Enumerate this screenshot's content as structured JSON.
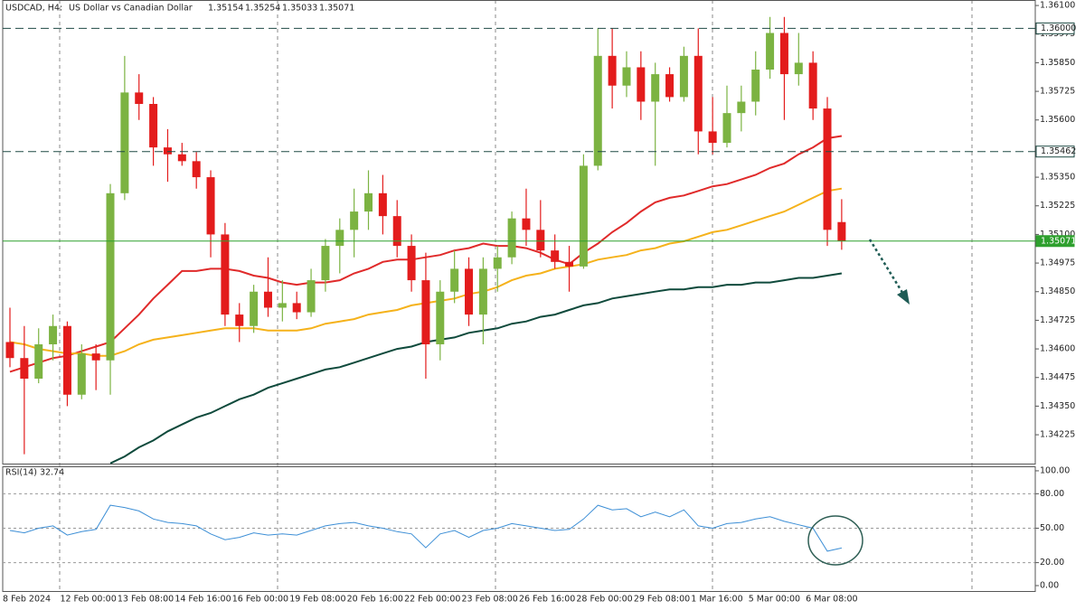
{
  "chart_data": [
    {
      "type": "candlestick",
      "symbol": "USDCAD, H4:",
      "title": "US Dollar vs Canadian Dollar",
      "categories": [
        "8 Feb 2024",
        null,
        null,
        null,
        "12 Feb 00:00",
        null,
        null,
        null,
        "13 Feb 08:00",
        null,
        null,
        null,
        "14 Feb 16:00",
        null,
        null,
        null,
        "16 Feb 00:00",
        null,
        null,
        null,
        "19 Feb 08:00",
        null,
        null,
        null,
        "20 Feb 16:00",
        null,
        null,
        null,
        "22 Feb 00:00",
        null,
        null,
        null,
        "23 Feb 08:00",
        null,
        null,
        null,
        "26 Feb 16:00",
        null,
        null,
        null,
        "28 Feb 00:00",
        null,
        null,
        null,
        "29 Feb 08:00",
        null,
        null,
        null,
        "1 Mar 16:00",
        null,
        null,
        null,
        "5 Mar 00:00",
        null,
        null,
        null,
        "6 Mar 08:00",
        null,
        null
      ],
      "open": [
        1.3463,
        1.3456,
        1.3447,
        1.3462,
        1.347,
        1.344,
        1.3458,
        1.3455,
        1.3528,
        1.3572,
        1.3567,
        1.3548,
        1.3545,
        1.3542,
        1.3535,
        1.351,
        1.3475,
        1.347,
        1.3485,
        1.3478,
        1.348,
        1.3476,
        1.349,
        1.3505,
        1.3512,
        1.352,
        1.3528,
        1.3518,
        1.3505,
        1.349,
        1.3462,
        1.3485,
        1.3495,
        1.3475,
        1.3495,
        1.35,
        1.3517,
        1.3512,
        1.3503,
        1.3498,
        1.3496,
        1.354,
        1.3588,
        1.3575,
        1.3583,
        1.3568,
        1.358,
        1.357,
        1.3588,
        1.3555,
        1.355,
        1.3563,
        1.3568,
        1.3582,
        1.3598,
        1.358,
        1.3585,
        1.3565,
        1.35154
      ],
      "high": [
        1.3478,
        1.347,
        1.3469,
        1.3475,
        1.3472,
        1.3462,
        1.3462,
        1.3532,
        1.3588,
        1.358,
        1.357,
        1.3556,
        1.355,
        1.3546,
        1.3538,
        1.3515,
        1.348,
        1.3488,
        1.35,
        1.349,
        1.3485,
        1.3495,
        1.3508,
        1.3517,
        1.353,
        1.3538,
        1.3536,
        1.3525,
        1.351,
        1.3502,
        1.349,
        1.3503,
        1.35,
        1.35,
        1.3505,
        1.352,
        1.353,
        1.3525,
        1.351,
        1.3505,
        1.3545,
        1.36,
        1.36,
        1.359,
        1.359,
        1.3585,
        1.3583,
        1.3592,
        1.36,
        1.357,
        1.3575,
        1.3575,
        1.359,
        1.3605,
        1.3605,
        1.3598,
        1.359,
        1.357,
        1.35254
      ],
      "low": [
        1.3452,
        1.3414,
        1.3445,
        1.3455,
        1.3435,
        1.3438,
        1.3442,
        1.344,
        1.3525,
        1.356,
        1.354,
        1.3533,
        1.354,
        1.353,
        1.35,
        1.347,
        1.3463,
        1.3467,
        1.3474,
        1.3472,
        1.3473,
        1.3474,
        1.3485,
        1.3493,
        1.35,
        1.3512,
        1.351,
        1.35,
        1.3485,
        1.3447,
        1.3455,
        1.348,
        1.347,
        1.3462,
        1.3485,
        1.3497,
        1.3505,
        1.35,
        1.3495,
        1.3485,
        1.3495,
        1.3538,
        1.3565,
        1.357,
        1.356,
        1.354,
        1.3568,
        1.3568,
        1.3545,
        1.3545,
        1.3548,
        1.3555,
        1.3562,
        1.3578,
        1.356,
        1.3575,
        1.356,
        1.3505,
        1.35033
      ],
      "close": [
        1.3456,
        1.3447,
        1.3462,
        1.347,
        1.344,
        1.3458,
        1.3455,
        1.3528,
        1.3572,
        1.3567,
        1.3548,
        1.3545,
        1.3542,
        1.3535,
        1.351,
        1.3475,
        1.347,
        1.3485,
        1.3478,
        1.348,
        1.3476,
        1.349,
        1.3505,
        1.3512,
        1.352,
        1.3528,
        1.3518,
        1.3505,
        1.349,
        1.3462,
        1.3485,
        1.3495,
        1.3475,
        1.3495,
        1.35,
        1.3517,
        1.3512,
        1.3503,
        1.3498,
        1.3496,
        1.354,
        1.3588,
        1.3575,
        1.3583,
        1.3568,
        1.358,
        1.357,
        1.3588,
        1.3555,
        1.355,
        1.3563,
        1.3568,
        1.3582,
        1.3598,
        1.358,
        1.3585,
        1.3565,
        1.3512,
        1.35071
      ],
      "up_color": "#7cb342",
      "down_color": "#e31c1c",
      "series": [
        {
          "color": "#e02a2a",
          "values": [
            1.345,
            1.3452,
            1.3454,
            1.3456,
            1.3457,
            1.3459,
            1.3461,
            1.3463,
            1.3469,
            1.3475,
            1.3482,
            1.3488,
            1.3494,
            1.3494,
            1.3495,
            1.3495,
            1.3494,
            1.3492,
            1.3491,
            1.3489,
            1.3488,
            1.3489,
            1.3489,
            1.349,
            1.3493,
            1.3495,
            1.3498,
            1.3499,
            1.3499,
            1.35,
            1.3501,
            1.3503,
            1.3504,
            1.3506,
            1.3505,
            1.3505,
            1.3504,
            1.3502,
            1.3499,
            1.3497,
            1.3502,
            1.3506,
            1.3511,
            1.3515,
            1.352,
            1.3524,
            1.3526,
            1.3527,
            1.3529,
            1.3531,
            1.3532,
            1.3534,
            1.3536,
            1.3539,
            1.3541,
            1.3545,
            1.3548,
            1.3552,
            1.3553
          ]
        },
        {
          "color": "#f5b21b",
          "values": [
            1.3463,
            1.3462,
            1.346,
            1.3459,
            1.3458,
            1.3458,
            1.3457,
            1.3457,
            1.3459,
            1.3462,
            1.3464,
            1.3465,
            1.3466,
            1.3467,
            1.3468,
            1.3469,
            1.3469,
            1.3469,
            1.3468,
            1.3468,
            1.3468,
            1.3469,
            1.3471,
            1.3472,
            1.3473,
            1.3475,
            1.3476,
            1.3477,
            1.3479,
            1.348,
            1.3481,
            1.3482,
            1.3484,
            1.3485,
            1.3487,
            1.349,
            1.3492,
            1.3493,
            1.3495,
            1.3496,
            1.3497,
            1.3499,
            1.35,
            1.3501,
            1.3503,
            1.3504,
            1.3506,
            1.3507,
            1.3509,
            1.3511,
            1.3512,
            1.3514,
            1.3516,
            1.3518,
            1.352,
            1.3523,
            1.3526,
            1.3529,
            1.353
          ]
        },
        {
          "color": "#0f4a3c",
          "values": [
            null,
            null,
            null,
            null,
            null,
            null,
            null,
            1.341,
            1.3413,
            1.3417,
            1.342,
            1.3424,
            1.3427,
            1.343,
            1.3432,
            1.3435,
            1.3438,
            1.344,
            1.3443,
            1.3445,
            1.3447,
            1.3449,
            1.3451,
            1.3452,
            1.3454,
            1.3456,
            1.3458,
            1.346,
            1.3461,
            1.3463,
            1.3464,
            1.3465,
            1.3467,
            1.3468,
            1.3469,
            1.3471,
            1.3472,
            1.3474,
            1.3475,
            1.3477,
            1.3479,
            1.348,
            1.3482,
            1.3483,
            1.3484,
            1.3485,
            1.3486,
            1.3486,
            1.3487,
            1.3487,
            1.3488,
            1.3488,
            1.3489,
            1.3489,
            1.349,
            1.3491,
            1.3491,
            1.3492,
            1.3493
          ]
        }
      ],
      "levels": [
        {
          "value": 1.36,
          "label": "1.36000",
          "style": "dashed"
        },
        {
          "value": 1.35462,
          "label": "1.35462",
          "style": "dashed"
        },
        {
          "value": 1.35071,
          "label": "1.35071",
          "style": "current",
          "color": "#2ea02e"
        }
      ],
      "ylim": [
        1.34099,
        1.36124
      ],
      "yticks": [
        {
          "value": 1.361,
          "label": "1.36100"
        },
        {
          "value": 1.35975,
          "label": "1.35975"
        },
        {
          "value": 1.3585,
          "label": "1.35850"
        },
        {
          "value": 1.35725,
          "label": "1.35725"
        },
        {
          "value": 1.356,
          "label": "1.35600"
        },
        {
          "value": 1.3535,
          "label": "1.35350"
        },
        {
          "value": 1.35225,
          "label": "1.35225"
        },
        {
          "value": 1.351,
          "label": "1.35100"
        },
        {
          "value": 1.34975,
          "label": "1.34975"
        },
        {
          "value": 1.3485,
          "label": "1.34850"
        },
        {
          "value": 1.34725,
          "label": "1.34725"
        },
        {
          "value": 1.346,
          "label": "1.34600"
        },
        {
          "value": 1.34475,
          "label": "1.34475"
        },
        {
          "value": 1.3435,
          "label": "1.34350"
        },
        {
          "value": 1.34225,
          "label": "1.34225"
        }
      ]
    },
    {
      "type": "line",
      "title": "RSI(14) 32.74",
      "color": "#3d8fd6",
      "values": [
        48,
        46,
        50,
        52,
        44,
        47,
        49,
        70,
        68,
        65,
        58,
        55,
        54,
        52,
        45,
        40,
        42,
        46,
        44,
        45,
        44,
        48,
        52,
        54,
        55,
        52,
        50,
        47,
        45,
        33,
        45,
        48,
        42,
        48,
        50,
        54,
        52,
        50,
        48,
        49,
        58,
        70,
        66,
        67,
        60,
        64,
        60,
        66,
        52,
        50,
        54,
        55,
        58,
        60,
        56,
        53,
        50,
        30,
        32.74
      ],
      "ylim": [
        -5.5,
        103.9
      ],
      "yticks": [
        {
          "value": 100,
          "label": "100.00"
        },
        {
          "value": 80,
          "label": "80.00"
        },
        {
          "value": 50,
          "label": "50.00"
        },
        {
          "value": 20,
          "label": "20.00"
        },
        {
          "value": 0,
          "label": "0.00"
        }
      ]
    }
  ]
}
